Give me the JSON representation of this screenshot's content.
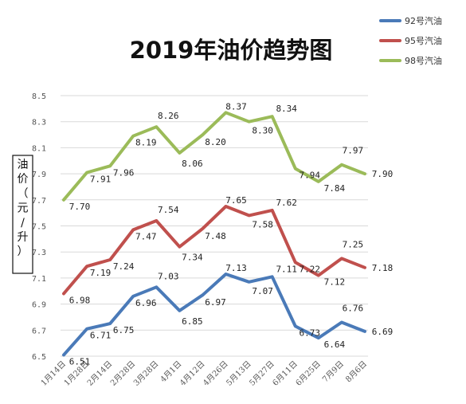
{
  "chart_data": {
    "type": "line",
    "title": "2019年油价趋势图",
    "ylabel": "油价（元/升）",
    "xlabel": "",
    "categories": [
      "1月14日",
      "1月28日",
      "2月14日",
      "2月28日",
      "3月28日",
      "4月1日",
      "4月12日",
      "4月26日",
      "5月13日",
      "5月27日",
      "6月11日",
      "6月25日",
      "7月9日",
      "8月6日"
    ],
    "yticks": [
      "6.5",
      "6.7",
      "6.9",
      "7.1",
      "7.3",
      "7.5",
      "7.7",
      "7.9",
      "8.1",
      "8.3",
      "8.5"
    ],
    "ylim": [
      6.5,
      8.5
    ],
    "grid": "horizontal",
    "legend_position": "top-right",
    "series": [
      {
        "name": "92号汽油",
        "color": "#4a7ab8",
        "values": [
          6.51,
          6.71,
          6.75,
          6.96,
          7.03,
          6.85,
          6.97,
          7.13,
          7.07,
          7.11,
          6.73,
          6.64,
          6.76,
          6.69
        ],
        "labels": [
          "6.51",
          "6.71",
          "6.75",
          "6.96",
          "7.03",
          "6.85",
          "6.97",
          "7.13",
          "7.07",
          "7.11",
          "6.73",
          "6.64",
          "6.76",
          "6.69"
        ]
      },
      {
        "name": "95号汽油",
        "color": "#c0504d",
        "values": [
          6.98,
          7.19,
          7.24,
          7.47,
          7.54,
          7.34,
          7.48,
          7.65,
          7.58,
          7.62,
          7.22,
          7.12,
          7.25,
          7.18
        ],
        "labels": [
          "6.98",
          "7.19",
          "7.24",
          "7.47",
          "7.54",
          "7.34",
          "7.48",
          "7.65",
          "7.58",
          "7.62",
          "7.22",
          "7.12",
          "7.25",
          "7.18"
        ]
      },
      {
        "name": "98号汽油",
        "color": "#9bbb59",
        "values": [
          7.7,
          7.91,
          7.96,
          8.19,
          8.26,
          8.06,
          8.2,
          8.37,
          8.3,
          8.34,
          7.94,
          7.84,
          7.97,
          7.9
        ],
        "labels": [
          "7.70",
          "7.91",
          "7.96",
          "8.19",
          "8.26",
          "8.06",
          "8.20",
          "8.37",
          "8.30",
          "8.34",
          "7.94",
          "7.84",
          "7.97",
          "7.90"
        ]
      }
    ]
  }
}
